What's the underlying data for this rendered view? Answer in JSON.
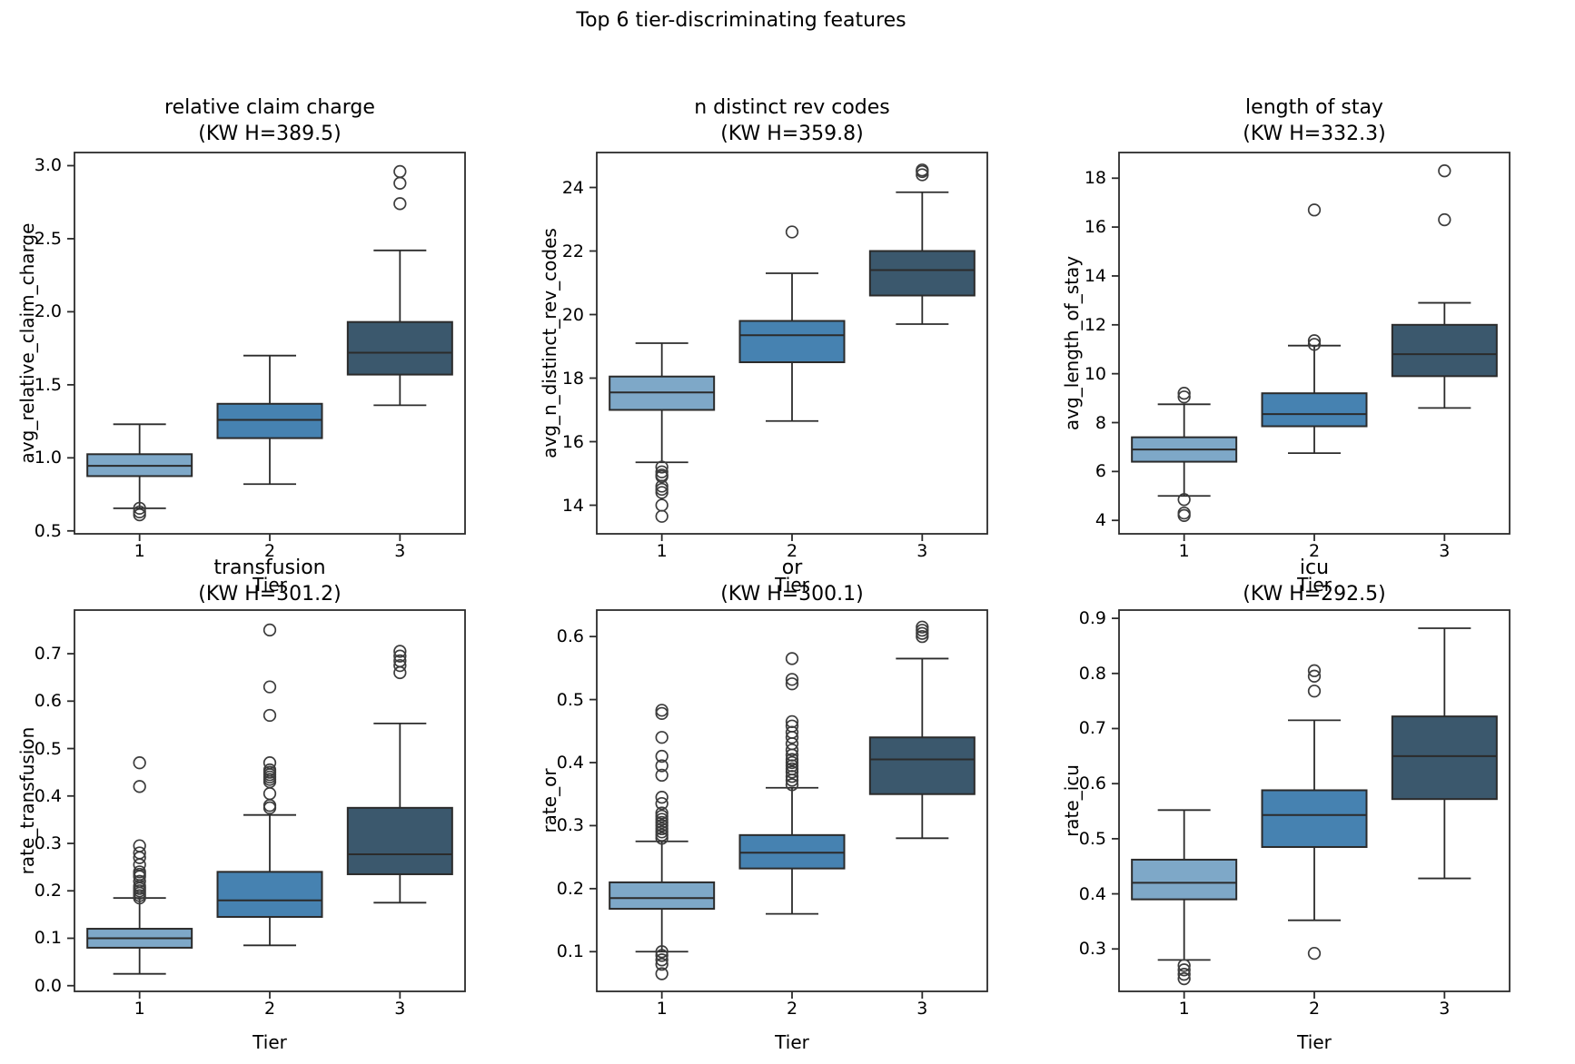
{
  "figure": {
    "title": "Top 6 tier-discriminating features"
  },
  "colors": {
    "tier_fills": [
      "#7EA8C8",
      "#4682B1",
      "#3B586D"
    ],
    "edge": "#2B2B2B",
    "flier_edge": "#3C3C3C",
    "text": "#000000",
    "background": "#FFFFFF"
  },
  "chart_data": [
    {
      "type": "box",
      "title": "relative claim charge",
      "subtitle": "(KW H=389.5)",
      "kw_h": 389.5,
      "xlabel": "Tier",
      "ylabel": "avg_relative_claim_charge",
      "categories": [
        "1",
        "2",
        "3"
      ],
      "yticks": [
        0.5,
        1.0,
        1.5,
        2.0,
        2.5,
        3.0
      ],
      "ytick_labels": [
        "0.5",
        "1.0",
        "1.5",
        "2.0",
        "2.5",
        "3.0"
      ],
      "ylim": [
        0.48,
        3.09
      ],
      "grid": false,
      "boxes": [
        {
          "tier": "1",
          "whisker_low": 0.655,
          "q1": 0.875,
          "median": 0.945,
          "q3": 1.025,
          "whisker_high": 1.23,
          "outliers": [
            0.655,
            0.63,
            0.61
          ]
        },
        {
          "tier": "2",
          "whisker_low": 0.82,
          "q1": 1.135,
          "median": 1.26,
          "q3": 1.37,
          "whisker_high": 1.7,
          "outliers": []
        },
        {
          "tier": "3",
          "whisker_low": 1.36,
          "q1": 1.57,
          "median": 1.72,
          "q3": 1.93,
          "whisker_high": 2.42,
          "outliers": [
            2.74,
            2.88,
            2.96
          ]
        }
      ]
    },
    {
      "type": "box",
      "title": "n distinct rev codes",
      "subtitle": "(KW H=359.8)",
      "kw_h": 359.8,
      "xlabel": "Tier",
      "ylabel": "avg_n_distinct_rev_codes",
      "categories": [
        "1",
        "2",
        "3"
      ],
      "yticks": [
        14,
        16,
        18,
        20,
        22,
        24
      ],
      "ytick_labels": [
        "14",
        "16",
        "18",
        "20",
        "22",
        "24"
      ],
      "ylim": [
        13.1,
        25.1
      ],
      "grid": false,
      "boxes": [
        {
          "tier": "1",
          "whisker_low": 15.35,
          "q1": 17.0,
          "median": 17.55,
          "q3": 18.05,
          "whisker_high": 19.1,
          "outliers": [
            15.2,
            15.05,
            14.95,
            14.9,
            14.6,
            14.5,
            14.4,
            14.0,
            13.65
          ]
        },
        {
          "tier": "2",
          "whisker_low": 16.65,
          "q1": 18.5,
          "median": 19.35,
          "q3": 19.8,
          "whisker_high": 21.3,
          "outliers": [
            22.6
          ]
        },
        {
          "tier": "3",
          "whisker_low": 19.7,
          "q1": 20.6,
          "median": 21.4,
          "q3": 22.0,
          "whisker_high": 23.85,
          "outliers": [
            24.4,
            24.5,
            24.55
          ]
        }
      ]
    },
    {
      "type": "box",
      "title": "length of stay",
      "subtitle": "(KW H=332.3)",
      "kw_h": 332.3,
      "xlabel": "Tier",
      "ylabel": "avg_length_of_stay",
      "categories": [
        "1",
        "2",
        "3"
      ],
      "yticks": [
        4,
        6,
        8,
        10,
        12,
        14,
        16,
        18
      ],
      "ytick_labels": [
        "4",
        "6",
        "8",
        "10",
        "12",
        "14",
        "16",
        "18"
      ],
      "ylim": [
        3.45,
        19.05
      ],
      "grid": false,
      "boxes": [
        {
          "tier": "1",
          "whisker_low": 5.0,
          "q1": 6.4,
          "median": 6.9,
          "q3": 7.4,
          "whisker_high": 8.75,
          "outliers": [
            9.05,
            9.2,
            4.85,
            4.3,
            4.2
          ]
        },
        {
          "tier": "2",
          "whisker_low": 6.75,
          "q1": 7.85,
          "median": 8.35,
          "q3": 9.2,
          "whisker_high": 11.15,
          "outliers": [
            11.2,
            11.35,
            16.7
          ]
        },
        {
          "tier": "3",
          "whisker_low": 8.6,
          "q1": 9.9,
          "median": 10.8,
          "q3": 12.0,
          "whisker_high": 12.9,
          "outliers": [
            16.3,
            18.3
          ]
        }
      ]
    },
    {
      "type": "box",
      "title": "transfusion",
      "subtitle": "(KW H=301.2)",
      "kw_h": 301.2,
      "xlabel": "Tier",
      "ylabel": "rate_transfusion",
      "categories": [
        "1",
        "2",
        "3"
      ],
      "yticks": [
        0.0,
        0.1,
        0.2,
        0.3,
        0.4,
        0.5,
        0.6,
        0.7
      ],
      "ytick_labels": [
        "0.0",
        "0.1",
        "0.2",
        "0.3",
        "0.4",
        "0.5",
        "0.6",
        "0.7"
      ],
      "ylim": [
        -0.012,
        0.792
      ],
      "grid": false,
      "boxes": [
        {
          "tier": "1",
          "whisker_low": 0.025,
          "q1": 0.08,
          "median": 0.1,
          "q3": 0.12,
          "whisker_high": 0.185,
          "outliers": [
            0.185,
            0.19,
            0.195,
            0.2,
            0.205,
            0.21,
            0.22,
            0.23,
            0.235,
            0.24,
            0.255,
            0.27,
            0.28,
            0.295,
            0.42,
            0.47
          ]
        },
        {
          "tier": "2",
          "whisker_low": 0.085,
          "q1": 0.145,
          "median": 0.18,
          "q3": 0.24,
          "whisker_high": 0.36,
          "outliers": [
            0.375,
            0.38,
            0.405,
            0.43,
            0.435,
            0.44,
            0.445,
            0.45,
            0.455,
            0.47,
            0.57,
            0.63,
            0.75
          ]
        },
        {
          "tier": "3",
          "whisker_low": 0.175,
          "q1": 0.235,
          "median": 0.277,
          "q3": 0.375,
          "whisker_high": 0.553,
          "outliers": [
            0.66,
            0.675,
            0.685,
            0.695,
            0.705
          ]
        }
      ]
    },
    {
      "type": "box",
      "title": "or",
      "subtitle": "(KW H=300.1)",
      "kw_h": 300.1,
      "xlabel": "Tier",
      "ylabel": "rate_or",
      "categories": [
        "1",
        "2",
        "3"
      ],
      "yticks": [
        0.1,
        0.2,
        0.3,
        0.4,
        0.5,
        0.6
      ],
      "ytick_labels": [
        "0.1",
        "0.2",
        "0.3",
        "0.4",
        "0.5",
        "0.6"
      ],
      "ylim": [
        0.037,
        0.642
      ],
      "grid": false,
      "boxes": [
        {
          "tier": "1",
          "whisker_low": 0.1,
          "q1": 0.168,
          "median": 0.185,
          "q3": 0.21,
          "whisker_high": 0.275,
          "outliers": [
            0.28,
            0.285,
            0.29,
            0.295,
            0.3,
            0.305,
            0.31,
            0.315,
            0.32,
            0.335,
            0.345,
            0.38,
            0.395,
            0.41,
            0.44,
            0.478,
            0.483,
            0.1,
            0.094,
            0.087,
            0.08,
            0.065
          ]
        },
        {
          "tier": "2",
          "whisker_low": 0.16,
          "q1": 0.232,
          "median": 0.257,
          "q3": 0.285,
          "whisker_high": 0.36,
          "outliers": [
            0.365,
            0.372,
            0.378,
            0.385,
            0.39,
            0.395,
            0.4,
            0.405,
            0.412,
            0.42,
            0.43,
            0.44,
            0.448,
            0.458,
            0.465,
            0.525,
            0.532,
            0.565
          ]
        },
        {
          "tier": "3",
          "whisker_low": 0.28,
          "q1": 0.35,
          "median": 0.405,
          "q3": 0.44,
          "whisker_high": 0.565,
          "outliers": [
            0.6,
            0.605,
            0.61,
            0.615
          ]
        }
      ]
    },
    {
      "type": "box",
      "title": "icu",
      "subtitle": "(KW H=292.5)",
      "kw_h": 292.5,
      "xlabel": "Tier",
      "ylabel": "rate_icu",
      "categories": [
        "1",
        "2",
        "3"
      ],
      "yticks": [
        0.3,
        0.4,
        0.5,
        0.6,
        0.7,
        0.8,
        0.9
      ],
      "ytick_labels": [
        "0.3",
        "0.4",
        "0.5",
        "0.6",
        "0.7",
        "0.8",
        "0.9"
      ],
      "ylim": [
        0.223,
        0.915
      ],
      "grid": false,
      "boxes": [
        {
          "tier": "1",
          "whisker_low": 0.28,
          "q1": 0.39,
          "median": 0.42,
          "q3": 0.462,
          "whisker_high": 0.552,
          "outliers": [
            0.27,
            0.262,
            0.254,
            0.246
          ]
        },
        {
          "tier": "2",
          "whisker_low": 0.352,
          "q1": 0.485,
          "median": 0.543,
          "q3": 0.588,
          "whisker_high": 0.715,
          "outliers": [
            0.292,
            0.768,
            0.795,
            0.805
          ]
        },
        {
          "tier": "3",
          "whisker_low": 0.428,
          "q1": 0.572,
          "median": 0.65,
          "q3": 0.722,
          "whisker_high": 0.882,
          "outliers": []
        }
      ]
    }
  ]
}
